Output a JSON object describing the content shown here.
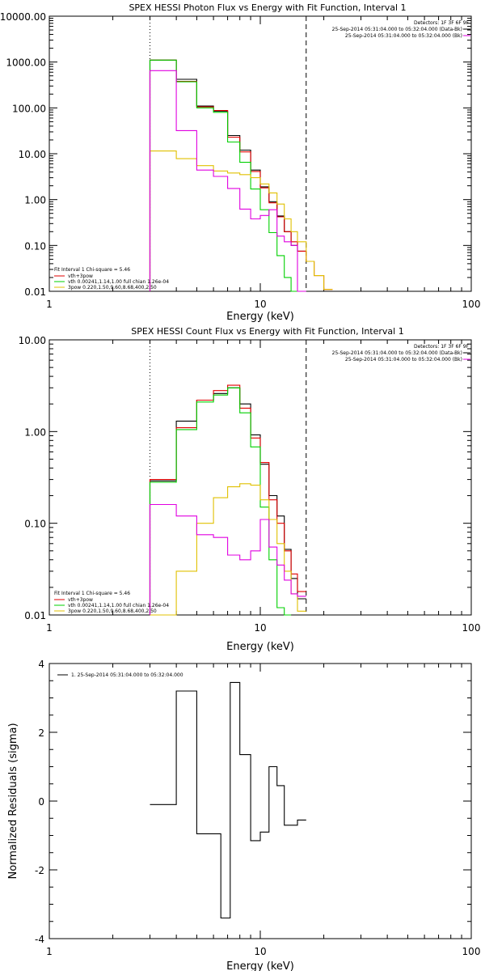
{
  "chart_data": [
    {
      "type": "line",
      "title": "SPEX HESSI Photon Flux vs Energy with Fit Function, Interval 1",
      "xlabel": "Energy (keV)",
      "ylabel": "",
      "xscale": "log",
      "yscale": "log",
      "xlim": [
        1,
        100
      ],
      "ylim": [
        0.01,
        10000
      ],
      "x_tick_labels": [
        "1",
        "10",
        "100"
      ],
      "y_tick_labels": [
        "0.01",
        "0.10",
        "1.00",
        "10.00",
        "100.00",
        "1000.00",
        "10000.00"
      ],
      "vlines": [
        {
          "x": 3.0,
          "style": "dotted"
        },
        {
          "x": 16.5,
          "style": "dashed"
        }
      ],
      "header_lines": [
        "Detectors: 1F 3F 6F 9F",
        "25-Sep-2014 05:31:04.000 to 05:32:04.000 (Data-Bk)",
        "25-Sep-2014 05:31:04.000 to 05:32:04.000 (Bk)"
      ],
      "header_colors": [
        "#000000",
        "#000000",
        "#e000e0"
      ],
      "legend_position": "bottom-left",
      "legend_title": "Fit Interval 1   Chi-square = 5.46",
      "edges": [
        3.0,
        4.0,
        5.0,
        6.0,
        7.0,
        8.0,
        9.0,
        10.0,
        11.0,
        12.0,
        13.0,
        14.0,
        15.0,
        16.5,
        18.0,
        20.0,
        22.0
      ],
      "series": [
        {
          "name": "",
          "color": "#000000",
          "values": [
            1100,
            420,
            110,
            85,
            25,
            12,
            4.4,
            1.9,
            0.9,
            0.44,
            0.2,
            0.1,
            0.075,
            null,
            null,
            null
          ]
        },
        {
          "name": "vth+3pow",
          "color": "#e00000",
          "values": [
            1100,
            380,
            105,
            88,
            23,
            11,
            4.1,
            1.8,
            0.85,
            0.42,
            0.2,
            0.12,
            0.075,
            0.045,
            0.022,
            0.011
          ]
        },
        {
          "name": "vth 0.00241,1.14,1.00  full chian 1.26e-04",
          "color": "#00d000",
          "values": [
            1100,
            370,
            100,
            80,
            18,
            6.5,
            1.7,
            0.6,
            0.19,
            0.06,
            0.02,
            0.006,
            null,
            null,
            null,
            null
          ]
        },
        {
          "name": "3pow 0.220,1.50,9.60,8.68,400,2.50",
          "color": "#e0c000",
          "values": [
            11.5,
            7.8,
            5.5,
            4.2,
            3.8,
            3.5,
            3.0,
            2.2,
            1.4,
            0.8,
            0.38,
            0.2,
            0.12,
            0.045,
            0.022,
            0.011
          ]
        },
        {
          "name": "",
          "color": "#e000e0",
          "values": [
            650,
            32,
            4.4,
            3.2,
            1.75,
            0.62,
            0.38,
            0.45,
            0.6,
            0.16,
            0.12,
            0.1,
            0.004,
            null,
            null,
            null
          ]
        }
      ]
    },
    {
      "type": "line",
      "title": "SPEX HESSI Count Flux vs Energy with Fit Function, Interval 1",
      "xlabel": "Energy (keV)",
      "ylabel": "",
      "xscale": "log",
      "yscale": "log",
      "xlim": [
        1,
        100
      ],
      "ylim": [
        0.01,
        10
      ],
      "x_tick_labels": [
        "1",
        "10",
        "100"
      ],
      "y_tick_labels": [
        "0.01",
        "0.10",
        "1.00",
        "10.00"
      ],
      "vlines": [
        {
          "x": 3.0,
          "style": "dotted"
        },
        {
          "x": 16.5,
          "style": "dashed"
        }
      ],
      "header_lines": [
        "Detectors: 1F 3F 6F 9F",
        "25-Sep-2014 05:31:04.000 to 05:32:04.000 (Data-Bk)",
        "25-Sep-2014 05:31:04.000 to 05:32:04.000 (Bk)"
      ],
      "header_colors": [
        "#000000",
        "#000000",
        "#e000e0"
      ],
      "legend_position": "bottom-left",
      "legend_title": "Fit Interval 1   Chi-square = 5.46",
      "edges": [
        3.0,
        4.0,
        5.0,
        6.0,
        7.0,
        8.0,
        9.0,
        10.0,
        11.0,
        12.0,
        13.0,
        14.0,
        15.0,
        16.5
      ],
      "series": [
        {
          "name": "",
          "color": "#000000",
          "values": [
            0.29,
            1.3,
            2.2,
            2.6,
            3.0,
            2.0,
            0.92,
            0.44,
            0.2,
            0.12,
            0.052,
            0.025,
            0.015
          ]
        },
        {
          "name": "vth+3pow",
          "color": "#e00000",
          "values": [
            0.3,
            1.1,
            2.2,
            2.8,
            3.2,
            1.8,
            0.85,
            0.46,
            0.18,
            0.1,
            0.05,
            0.028,
            0.018
          ]
        },
        {
          "name": "vth 0.00241,1.14,1.00  full chian 1.26e-04",
          "color": "#00d000",
          "values": [
            0.28,
            1.05,
            2.1,
            2.5,
            3.0,
            1.6,
            0.68,
            0.15,
            0.04,
            0.012,
            0.004,
            null,
            null
          ]
        },
        {
          "name": "3pow 0.220,1.50,9.60,8.68,400,2.50",
          "color": "#e0c000",
          "values": [
            0.01,
            0.03,
            0.1,
            0.19,
            0.25,
            0.27,
            0.26,
            0.18,
            0.11,
            0.06,
            0.03,
            0.017,
            0.011
          ]
        },
        {
          "name": "",
          "color": "#e000e0",
          "values": [
            0.16,
            0.12,
            0.075,
            0.07,
            0.045,
            0.04,
            0.05,
            0.11,
            0.055,
            0.035,
            0.024,
            0.017,
            0.016
          ]
        }
      ]
    },
    {
      "type": "line",
      "title": "",
      "xlabel": "Energy (keV)",
      "ylabel": "Normalized Residuals (sigma)",
      "xscale": "log",
      "yscale": "linear",
      "xlim": [
        1,
        100
      ],
      "ylim": [
        -4,
        4
      ],
      "x_tick_labels": [
        "1",
        "10",
        "100"
      ],
      "y_tick_labels": [
        "-4",
        "-2",
        "0",
        "2",
        "4"
      ],
      "legend_position": "top-left",
      "edges": [
        3.0,
        3.5,
        4.0,
        4.5,
        5.0,
        5.8,
        6.5,
        7.2,
        8.0,
        9.0,
        10.0,
        11.0,
        12.0,
        13.0,
        14.0,
        15.0,
        16.5
      ],
      "series": [
        {
          "name": "1. 25-Sep-2014 05:31:04.000 to 05:32:04.000",
          "color": "#000000",
          "values": [
            -0.1,
            -0.1,
            3.2,
            3.2,
            -0.95,
            -0.95,
            -3.4,
            3.45,
            1.35,
            -1.15,
            -0.9,
            1.0,
            0.45,
            -0.7,
            -0.7,
            -0.55
          ]
        }
      ]
    }
  ]
}
